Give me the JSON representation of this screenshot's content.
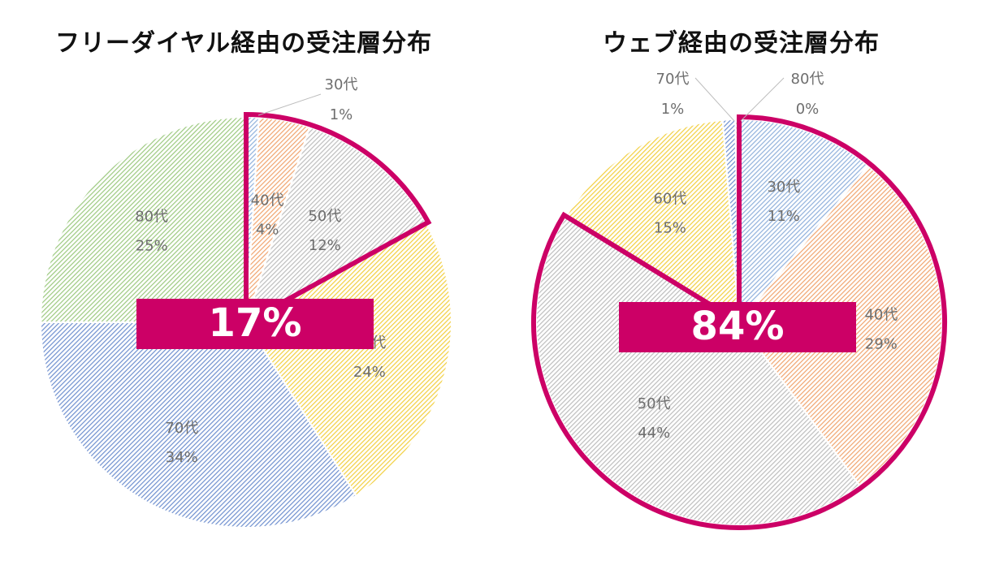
{
  "accent": "#cc0066",
  "hatch_colors": {
    "30代": "#8fb0dc",
    "40代": "#f0a46e",
    "50代": "#bdbdbd",
    "60代": "#f2cf3f",
    "70代": "#6e8fcf",
    "80代": "#9cc97f"
  },
  "chart_data": [
    {
      "type": "pie",
      "title": "フリーダイヤル経由の受注層分布",
      "slices": [
        {
          "label": "30代",
          "value": 1,
          "pct_text": "1%"
        },
        {
          "label": "40代",
          "value": 4,
          "pct_text": "4%"
        },
        {
          "label": "50代",
          "value": 12,
          "pct_text": "12%"
        },
        {
          "label": "60代",
          "value": 24,
          "pct_text": "24%"
        },
        {
          "label": "70代",
          "value": 34,
          "pct_text": "34%"
        },
        {
          "label": "80代",
          "value": 25,
          "pct_text": "25%"
        }
      ],
      "highlight": [
        "30代",
        "40代",
        "50代"
      ],
      "highlight_text": "17%"
    },
    {
      "type": "pie",
      "title": "ウェブ経由の受注層分布",
      "slices": [
        {
          "label": "30代",
          "value": 11,
          "pct_text": "11%"
        },
        {
          "label": "40代",
          "value": 29,
          "pct_text": "29%"
        },
        {
          "label": "50代",
          "value": 44,
          "pct_text": "44%"
        },
        {
          "label": "60代",
          "value": 15,
          "pct_text": "15%"
        },
        {
          "label": "70代",
          "value": 1,
          "pct_text": "1%"
        },
        {
          "label": "80代",
          "value": 0.3,
          "pct_text": "0%"
        }
      ],
      "highlight": [
        "30代",
        "40代",
        "50代"
      ],
      "highlight_text": "84%"
    }
  ]
}
